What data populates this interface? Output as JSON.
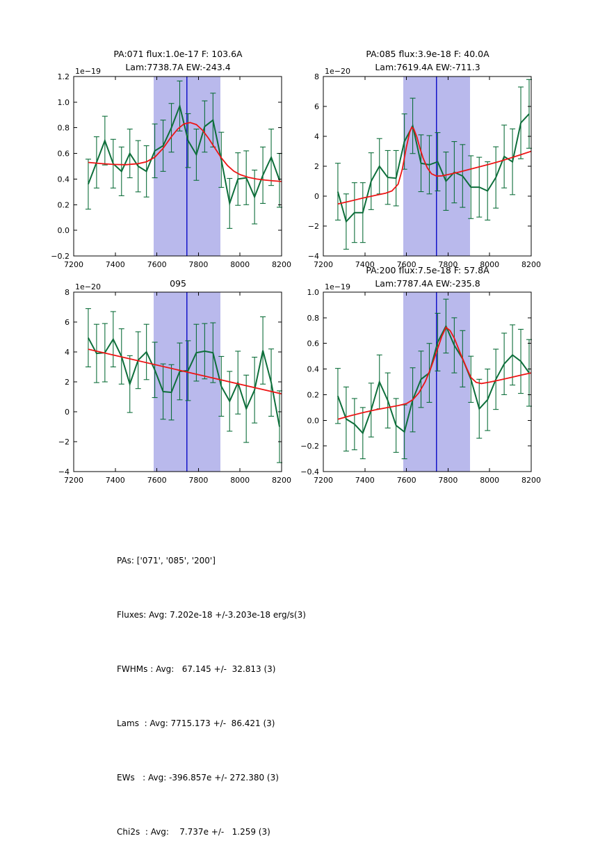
{
  "colors": {
    "background": "#ffffff",
    "spectrum": "#0d6e3a",
    "fit": "#ed1515",
    "band": "#b9b9ec",
    "vline": "#1414c8",
    "axis": "#000000"
  },
  "stats": {
    "lines": [
      "PAs: ['071', '085', '200']",
      "Fluxes: Avg: 7.202e-18 +/-3.203e-18 erg/s(3)",
      "FWHMs : Avg:   67.145 +/-  32.813 (3)",
      "Lams  : Avg: 7715.173 +/-  86.421 (3)",
      "EWs   : Avg: -396.857e +/- 272.380 (3)",
      "Chi2s  : Avg:    7.737e +/-   1.259 (3)"
    ]
  },
  "chart_data": [
    {
      "type": "line",
      "title1": "PA:071 flux:1.0e-17 F: 103.6A",
      "title2": "Lam:7738.7A EW:-243.4",
      "y_offset_label": "1e−19",
      "xlim": [
        7200,
        8200
      ],
      "ylim": [
        -0.2,
        1.2
      ],
      "xticks": [
        7200,
        7400,
        7600,
        7800,
        8000,
        8200
      ],
      "xtick_labels": [
        "7200",
        "7400",
        "7600",
        "7800",
        "8000",
        "8200"
      ],
      "ytick_vals": [
        1.2,
        1.0,
        0.8,
        0.6,
        0.4,
        0.2,
        0.0,
        -0.2
      ],
      "ytick_labels": [
        "1.2",
        "1.0",
        "0.8",
        "0.6",
        "0.4",
        "0.2",
        "0.0",
        "−0.2"
      ],
      "band_x": [
        7585,
        7905
      ],
      "vline_x": 7744,
      "x": [
        7270,
        7310,
        7350,
        7390,
        7430,
        7470,
        7510,
        7550,
        7590,
        7630,
        7670,
        7710,
        7750,
        7790,
        7830,
        7870,
        7910,
        7950,
        7990,
        8030,
        8070,
        8110,
        8150,
        8190
      ],
      "spectrum": [
        0.36,
        0.53,
        0.7,
        0.52,
        0.46,
        0.6,
        0.5,
        0.46,
        0.62,
        0.66,
        0.8,
        0.97,
        0.7,
        0.59,
        0.81,
        0.86,
        0.55,
        0.21,
        0.4,
        0.41,
        0.26,
        0.43,
        0.57,
        0.39
      ],
      "errors": [
        0.195,
        0.2,
        0.19,
        0.19,
        0.19,
        0.19,
        0.2,
        0.2,
        0.21,
        0.2,
        0.19,
        0.195,
        0.21,
        0.2,
        0.2,
        0.21,
        0.215,
        0.195,
        0.205,
        0.21,
        0.21,
        0.22,
        0.22,
        0.21
      ],
      "fit": {
        "x": [
          7270,
          7330,
          7390,
          7450,
          7510,
          7550,
          7590,
          7630,
          7670,
          7700,
          7730,
          7760,
          7790,
          7820,
          7850,
          7880,
          7910,
          7940,
          7970,
          8000,
          8040,
          8080,
          8120,
          8160,
          8200
        ],
        "y": [
          0.53,
          0.521,
          0.514,
          0.512,
          0.52,
          0.535,
          0.57,
          0.64,
          0.73,
          0.79,
          0.83,
          0.841,
          0.825,
          0.78,
          0.715,
          0.64,
          0.565,
          0.505,
          0.462,
          0.435,
          0.413,
          0.4,
          0.392,
          0.386,
          0.381
        ]
      }
    },
    {
      "type": "line",
      "title1": "PA:085 flux:3.9e-18 F: 40.0A",
      "title2": "Lam:7619.4A EW:-711.3",
      "y_offset_label": "1e−20",
      "xlim": [
        7200,
        8200
      ],
      "ylim": [
        -4,
        8
      ],
      "xticks": [
        7200,
        7400,
        7600,
        7800,
        8000,
        8200
      ],
      "xtick_labels": [
        "7200",
        "7400",
        "7600",
        "7800",
        "8000",
        "8200"
      ],
      "ytick_vals": [
        8,
        6,
        4,
        2,
        0,
        -2,
        -4
      ],
      "ytick_labels": [
        "8",
        "6",
        "4",
        "2",
        "0",
        "−2",
        "−4"
      ],
      "band_x": [
        7585,
        7905
      ],
      "vline_x": 7744,
      "x": [
        7270,
        7310,
        7350,
        7390,
        7430,
        7470,
        7510,
        7550,
        7590,
        7630,
        7670,
        7710,
        7750,
        7790,
        7830,
        7870,
        7910,
        7950,
        7990,
        8030,
        8070,
        8110,
        8150,
        8190
      ],
      "spectrum": [
        0.3,
        -1.7,
        -1.1,
        -1.1,
        1.0,
        2.0,
        1.25,
        1.2,
        3.65,
        4.7,
        2.2,
        2.1,
        2.3,
        1.0,
        1.6,
        1.35,
        0.6,
        0.6,
        0.35,
        1.25,
        2.65,
        2.3,
        4.9,
        5.5
      ],
      "errors": [
        1.9,
        1.85,
        2.0,
        2.0,
        1.9,
        1.85,
        1.8,
        1.85,
        1.85,
        1.85,
        1.9,
        1.95,
        1.95,
        1.95,
        2.05,
        2.1,
        2.1,
        2.0,
        1.95,
        2.05,
        2.1,
        2.2,
        2.4,
        2.3
      ],
      "fit": {
        "x": [
          7270,
          7330,
          7390,
          7450,
          7500,
          7530,
          7560,
          7580,
          7600,
          7615,
          7625,
          7635,
          7650,
          7665,
          7680,
          7700,
          7720,
          7745,
          7770,
          7800,
          7850,
          7900,
          7950,
          8000,
          8050,
          8100,
          8150,
          8200
        ],
        "y": [
          -0.52,
          -0.33,
          -0.13,
          0.05,
          0.2,
          0.35,
          0.8,
          1.8,
          3.3,
          4.25,
          4.6,
          4.5,
          3.95,
          3.2,
          2.55,
          1.9,
          1.5,
          1.34,
          1.36,
          1.44,
          1.6,
          1.78,
          1.96,
          2.14,
          2.33,
          2.55,
          2.77,
          3.0
        ]
      }
    },
    {
      "type": "line",
      "title1": "095",
      "title2": "",
      "y_offset_label": "1e−20",
      "xlim": [
        7200,
        8200
      ],
      "ylim": [
        -4,
        8
      ],
      "xticks": [
        7200,
        7400,
        7600,
        7800,
        8000,
        8200
      ],
      "xtick_labels": [
        "7200",
        "7400",
        "7600",
        "7800",
        "8000",
        "8200"
      ],
      "ytick_vals": [
        8,
        6,
        4,
        2,
        0,
        -2,
        -4
      ],
      "ytick_labels": [
        "8",
        "6",
        "4",
        "2",
        "0",
        "−2",
        "−4"
      ],
      "band_x": [
        7585,
        7905
      ],
      "vline_x": 7744,
      "x": [
        7270,
        7310,
        7350,
        7390,
        7430,
        7470,
        7510,
        7550,
        7590,
        7630,
        7670,
        7710,
        7750,
        7790,
        7830,
        7870,
        7910,
        7950,
        7990,
        8030,
        8070,
        8110,
        8150,
        8190
      ],
      "spectrum": [
        4.95,
        3.9,
        3.95,
        4.85,
        3.7,
        1.85,
        3.45,
        4.0,
        2.8,
        1.35,
        1.3,
        2.7,
        2.75,
        3.95,
        4.05,
        3.95,
        1.7,
        0.7,
        1.95,
        0.2,
        1.45,
        4.1,
        1.95,
        -1.0
      ],
      "errors": [
        1.95,
        1.95,
        1.95,
        1.85,
        1.85,
        1.9,
        1.9,
        1.85,
        1.85,
        1.85,
        1.85,
        1.9,
        2.0,
        1.9,
        1.85,
        2.0,
        2.0,
        2.0,
        2.1,
        2.25,
        2.2,
        2.25,
        2.25,
        2.4
      ],
      "fit": {
        "x": [
          7270,
          8200
        ],
        "y": [
          4.18,
          1.2
        ]
      }
    },
    {
      "type": "line",
      "title1": "PA:200 flux:7.5e-18 F: 57.8A",
      "title2": "Lam:7787.4A EW:-235.8",
      "y_offset_label": "1e−19",
      "xlim": [
        7200,
        8200
      ],
      "ylim": [
        -0.4,
        1.0
      ],
      "xticks": [
        7200,
        7400,
        7600,
        7800,
        8000,
        8200
      ],
      "xtick_labels": [
        "7200",
        "7400",
        "7600",
        "7800",
        "8000",
        "8200"
      ],
      "ytick_vals": [
        1.0,
        0.8,
        0.6,
        0.4,
        0.2,
        0.0,
        -0.2,
        -0.4
      ],
      "ytick_labels": [
        "1.0",
        "0.8",
        "0.6",
        "0.4",
        "0.2",
        "0.0",
        "−0.2",
        "−0.4"
      ],
      "band_x": [
        7585,
        7905
      ],
      "vline_x": 7744,
      "x": [
        7270,
        7310,
        7350,
        7390,
        7430,
        7470,
        7510,
        7550,
        7590,
        7630,
        7670,
        7710,
        7750,
        7790,
        7830,
        7870,
        7910,
        7950,
        7990,
        8030,
        8070,
        8110,
        8150,
        8190
      ],
      "spectrum": [
        0.19,
        0.01,
        -0.03,
        -0.1,
        0.08,
        0.3,
        0.155,
        -0.04,
        -0.09,
        0.16,
        0.32,
        0.37,
        0.61,
        0.735,
        0.585,
        0.48,
        0.32,
        0.09,
        0.16,
        0.32,
        0.44,
        0.51,
        0.46,
        0.37
      ],
      "errors": [
        0.215,
        0.25,
        0.2,
        0.2,
        0.21,
        0.21,
        0.215,
        0.21,
        0.21,
        0.25,
        0.22,
        0.23,
        0.225,
        0.21,
        0.215,
        0.22,
        0.18,
        0.23,
        0.24,
        0.235,
        0.24,
        0.235,
        0.25,
        0.26
      ],
      "fit": {
        "x": [
          7270,
          7330,
          7390,
          7450,
          7510,
          7560,
          7600,
          7630,
          7660,
          7690,
          7720,
          7750,
          7770,
          7790,
          7810,
          7830,
          7860,
          7890,
          7910,
          7935,
          7960,
          8000,
          8050,
          8100,
          8150,
          8200
        ],
        "y": [
          0.008,
          0.035,
          0.06,
          0.082,
          0.1,
          0.115,
          0.13,
          0.16,
          0.215,
          0.3,
          0.42,
          0.56,
          0.655,
          0.725,
          0.7,
          0.64,
          0.52,
          0.405,
          0.335,
          0.296,
          0.287,
          0.298,
          0.315,
          0.333,
          0.352,
          0.37
        ]
      }
    }
  ]
}
